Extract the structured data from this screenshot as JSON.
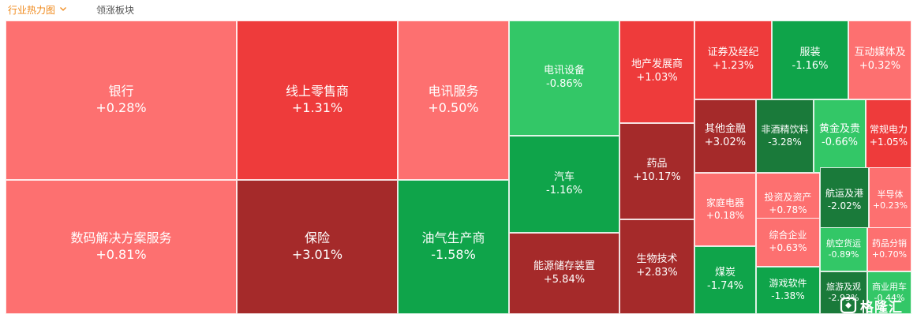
{
  "tabs": {
    "active_label": "行业热力图",
    "inactive_label": "领涨板块"
  },
  "logo": {
    "text": "格隆汇"
  },
  "colors": {
    "strong_red": "#a52a2a",
    "red": "#ee3b3b",
    "light_red": "#fd7070",
    "dark_green": "#1a7a3a",
    "green": "#0fa44a",
    "light_green": "#33c767"
  },
  "chart_data": {
    "type": "heatmap",
    "value_unit": "%",
    "sectors": [
      {
        "name": "银行",
        "change": 0.28,
        "label": "+0.28%",
        "color": "#fd7070"
      },
      {
        "name": "数码解决方案服务",
        "change": 0.81,
        "label": "+0.81%",
        "color": "#fd7070"
      },
      {
        "name": "线上零售商",
        "change": 1.31,
        "label": "+1.31%",
        "color": "#ee3b3b"
      },
      {
        "name": "保险",
        "change": 3.01,
        "label": "+3.01%",
        "color": "#a52a2a"
      },
      {
        "name": "电讯服务",
        "change": 0.5,
        "label": "+0.50%",
        "color": "#fd7070"
      },
      {
        "name": "油气生产商",
        "change": -1.58,
        "label": "-1.58%",
        "color": "#0fa44a"
      },
      {
        "name": "电讯设备",
        "change": -0.86,
        "label": "-0.86%",
        "color": "#33c767"
      },
      {
        "name": "汽车",
        "change": -1.16,
        "label": "-1.16%",
        "color": "#0fa44a"
      },
      {
        "name": "能源储存装置",
        "change": 5.84,
        "label": "+5.84%",
        "color": "#a52a2a"
      },
      {
        "name": "地产发展商",
        "change": 1.03,
        "label": "+1.03%",
        "color": "#ee3b3b"
      },
      {
        "name": "药品",
        "change": 10.17,
        "label": "+10.17%",
        "color": "#a52a2a"
      },
      {
        "name": "生物技术",
        "change": 2.83,
        "label": "+2.83%",
        "color": "#a52a2a"
      },
      {
        "name": "证券及经纪",
        "change": 1.23,
        "label": "+1.23%",
        "color": "#ee3b3b"
      },
      {
        "name": "服装",
        "change": -1.16,
        "label": "-1.16%",
        "color": "#0fa44a"
      },
      {
        "name": "互动媒体及",
        "change": 0.32,
        "label": "+0.32%",
        "color": "#fd7070"
      },
      {
        "name": "其他金融",
        "change": 3.02,
        "label": "+3.02%",
        "color": "#a52a2a"
      },
      {
        "name": "非酒精饮料",
        "change": -3.28,
        "label": "-3.28%",
        "color": "#1a7a3a"
      },
      {
        "name": "黄金及贵",
        "change": -0.66,
        "label": "-0.66%",
        "color": "#33c767"
      },
      {
        "name": "常规电力",
        "change": 1.05,
        "label": "+1.05%",
        "color": "#ee3b3b"
      },
      {
        "name": "家庭电器",
        "change": 0.18,
        "label": "+0.18%",
        "color": "#fd7070"
      },
      {
        "name": "投资及资产",
        "change": 0.78,
        "label": "+0.78%",
        "color": "#fd7070"
      },
      {
        "name": "航运及港",
        "change": -2.02,
        "label": "-2.02%",
        "color": "#1a7a3a"
      },
      {
        "name": "半导体",
        "change": 0.23,
        "label": "+0.23%",
        "color": "#fd7070"
      },
      {
        "name": "综合企业",
        "change": 0.63,
        "label": "+0.63%",
        "color": "#fd7070"
      },
      {
        "name": "航空货运",
        "change": -0.89,
        "label": "-0.89%",
        "color": "#33c767"
      },
      {
        "name": "药品分销",
        "change": 0.7,
        "label": "+0.70%",
        "color": "#fd7070"
      },
      {
        "name": "煤炭",
        "change": -1.74,
        "label": "-1.74%",
        "color": "#0fa44a"
      },
      {
        "name": "游戏软件",
        "change": -1.38,
        "label": "-1.38%",
        "color": "#0fa44a"
      },
      {
        "name": "旅游及观",
        "change": -2.93,
        "label": "-2.93%",
        "color": "#1a7a3a"
      },
      {
        "name": "商业用车",
        "change": -0.44,
        "label": "-0.44%",
        "color": "#33c767"
      }
    ]
  }
}
